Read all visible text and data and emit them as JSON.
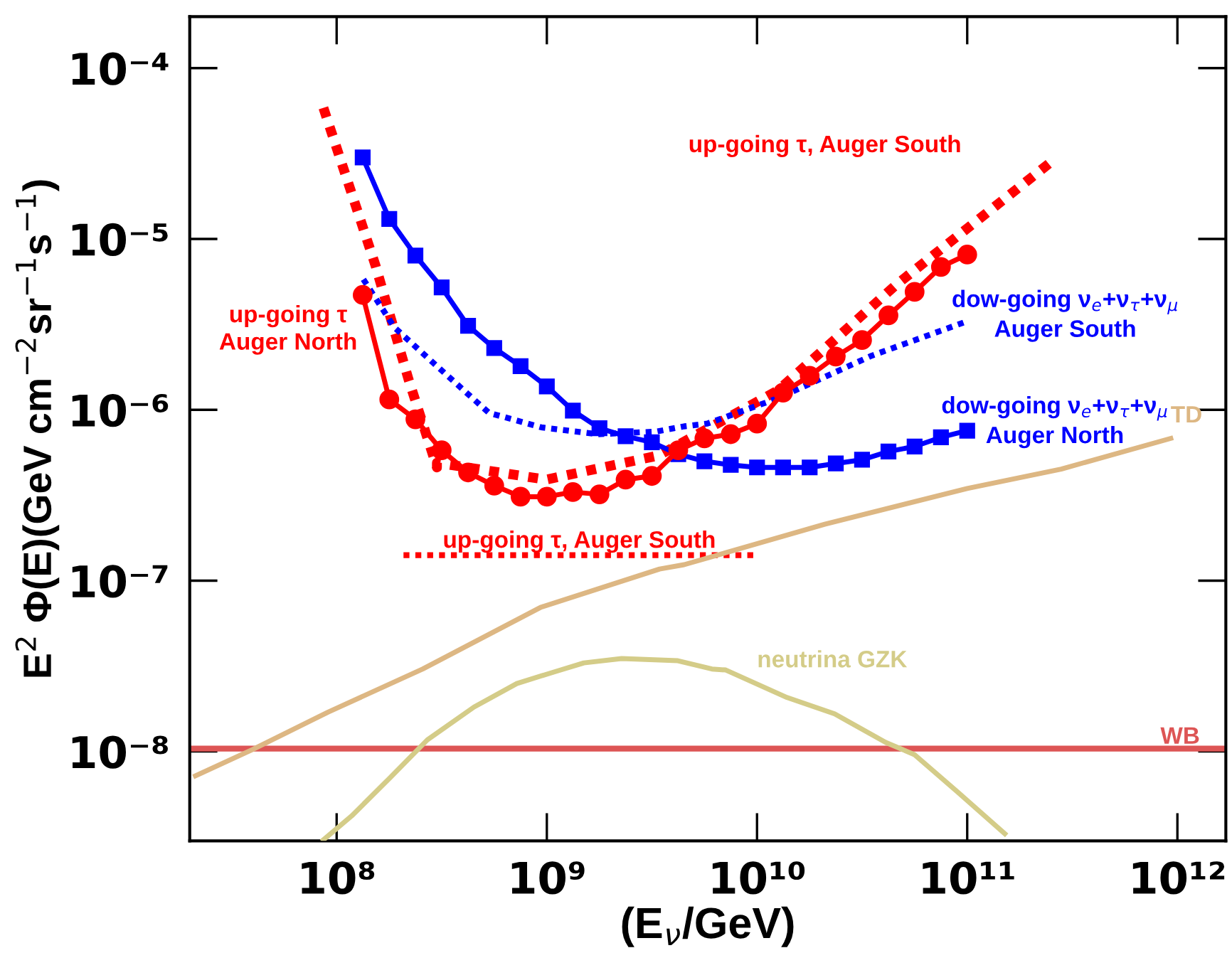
{
  "chart_data": {
    "type": "line",
    "xlabel": "(E$_{ν}$/GeV)",
    "ylabel": "E$^{2}$ Φ(E)(GeV cm$^{−2}$sr$^{−1}$s$^{−1}$)",
    "log": "xy",
    "grid": false,
    "xlim": [
      20000000.0,
      1700000000000.0
    ],
    "ylim": [
      3e-09,
      0.0002
    ],
    "xticks": [
      {
        "value": 100000000.0,
        "label": "10⁸"
      },
      {
        "value": 1000000000.0,
        "label": "10⁹"
      },
      {
        "value": 10000000000.0,
        "label": "10¹⁰"
      },
      {
        "value": 100000000000.0,
        "label": "10¹¹"
      },
      {
        "value": 1000000000000.0,
        "label": "10¹²"
      }
    ],
    "yticks": [
      {
        "value": 1e-08,
        "label": "10⁻⁸"
      },
      {
        "value": 1e-07,
        "label": "10⁻⁷"
      },
      {
        "value": 1e-06,
        "label": "10⁻⁶"
      },
      {
        "value": 1e-05,
        "label": "10⁻⁵"
      },
      {
        "value": 0.0001,
        "label": "10⁻⁴"
      }
    ],
    "series": [
      {
        "name": "up-going τ, Auger South",
        "color": "#ff0000",
        "line_style": "dotted",
        "marker": "none",
        "x": [
          86500000.0,
          153000000.0,
          220000000.0,
          300000000.0,
          300000000.0,
          990000000.0,
          3400000000.0,
          12600000000.0,
          46000000000.0,
          254000000000.0
        ],
        "values": [
          5.85e-05,
          7e-06,
          1.5e-06,
          4.6e-07,
          4.9e-07,
          3.9e-07,
          5.4e-07,
          1.3e-06,
          5.4e-06,
          2.86e-05
        ]
      },
      {
        "name": "up-going τ\nAuger North",
        "color": "#ff0000",
        "line_style": "solid",
        "marker": "circle",
        "x": [
          133000000.0,
          178000000.0,
          237000000.0,
          316000000.0,
          422000000.0,
          562000000.0,
          750000000.0,
          1000000000.0,
          1330000000.0,
          1780000000.0,
          2370000000.0,
          3160000000.0,
          4220000000.0,
          5620000000.0,
          7500000000.0,
          10000000000.0,
          13300000000.0,
          17800000000.0,
          23700000000.0,
          31600000000.0,
          42200000000.0,
          56200000000.0,
          75000000000.0,
          100000000000.0
        ],
        "values": [
          4.7e-06,
          1.15e-06,
          8.8e-07,
          5.8e-07,
          4.3e-07,
          3.6e-07,
          3.1e-07,
          3.1e-07,
          3.3e-07,
          3.2e-07,
          3.9e-07,
          4.1e-07,
          5.8e-07,
          6.8e-07,
          7.2e-07,
          8.3e-07,
          1.26e-06,
          1.58e-06,
          2.05e-06,
          2.56e-06,
          3.57e-06,
          4.9e-06,
          6.86e-06,
          8.1e-06
        ]
      },
      {
        "name": "dow-going ν$_{e}$+ν$_{τ}$+ν$_{μ}$\nAuger North",
        "color": "#0000ff",
        "line_style": "solid",
        "marker": "square",
        "x": [
          133000000.0,
          178000000.0,
          237000000.0,
          316000000.0,
          422000000.0,
          562000000.0,
          750000000.0,
          1000000000.0,
          1330000000.0,
          1780000000.0,
          2370000000.0,
          3160000000.0,
          4220000000.0,
          5620000000.0,
          7500000000.0,
          10000000000.0,
          13300000000.0,
          17800000000.0,
          23700000000.0,
          31600000000.0,
          42200000000.0,
          56200000000.0,
          75000000000.0,
          100000000000.0
        ],
        "values": [
          3e-05,
          1.31e-05,
          8e-06,
          5.2e-06,
          3.1e-06,
          2.3e-06,
          1.8e-06,
          1.37e-06,
          9.9e-07,
          7.8e-07,
          7e-07,
          6.45e-07,
          5.5e-07,
          5e-07,
          4.76e-07,
          4.6e-07,
          4.6e-07,
          4.6e-07,
          4.85e-07,
          5.1e-07,
          5.7e-07,
          6.1e-07,
          6.9e-07,
          7.55e-07
        ]
      },
      {
        "name": "dow-going ν$_{e}$+ν$_{τ}$+ν$_{μ}$\nAuger South",
        "color": "#0000ff",
        "line_style": "dotted",
        "marker": "none",
        "x": [
          134000000.0,
          188000000.0,
          300000000.0,
          530000000.0,
          940000000.0,
          1750000000.0,
          3300000000.0,
          4500000000.0,
          5800000000.0,
          12600000000.0,
          35000000000.0,
          100000000000.0
        ],
        "values": [
          5.8e-06,
          3.04e-06,
          1.8e-06,
          9.6e-07,
          7.9e-07,
          7.2e-07,
          7.45e-07,
          8e-07,
          8.3e-07,
          1.17e-06,
          2.07e-06,
          3.3e-06
        ]
      },
      {
        "name": "up-going τ, Auger South",
        "color": "#ff0000",
        "line_style": "dotted",
        "marker": "none",
        "x": [
          208000000.0,
          9700000000.0
        ],
        "values": [
          1.41e-07,
          1.41e-07
        ]
      },
      {
        "name": "TD",
        "color": "#ddb783",
        "line_style": "solid",
        "marker": "none",
        "x": [
          21300000.0,
          40000000.0,
          91000000.0,
          257000000.0,
          940000000.0,
          3440000000.0,
          4500000000.0,
          21000000000.0,
          100000000000.0,
          280000000000.0,
          930000000000.0
        ],
        "values": [
          7.2e-09,
          1.03e-08,
          1.7e-08,
          3.04e-08,
          7e-08,
          1.17e-07,
          1.24e-07,
          2.14e-07,
          3.46e-07,
          4.5e-07,
          6.8e-07
        ]
      },
      {
        "name": "neutrina GZK",
        "color": "#d4cc88",
        "line_style": "solid",
        "marker": "none",
        "x": [
          86500000.0,
          118000000.0,
          179000000.0,
          270000000.0,
          450000000.0,
          720000000.0,
          1100000000.0,
          1500000000.0,
          2270000000.0,
          2940000000.0,
          4200000000.0,
          6100000000.0,
          7100000000.0,
          13900000000.0,
          23400000000.0,
          41000000000.0,
          56000000000.0,
          90000000000.0,
          151000000000.0
        ],
        "values": [
          3.04e-09,
          4.2e-09,
          7e-09,
          1.17e-08,
          1.82e-08,
          2.5e-08,
          2.94e-08,
          3.3e-08,
          3.5e-08,
          3.46e-08,
          3.4e-08,
          3.04e-08,
          3e-08,
          2.07e-08,
          1.66e-08,
          1.13e-08,
          9.6e-09,
          5.8e-09,
          3.3e-09
        ]
      }
    ],
    "ref_lines": [
      {
        "axis": "y",
        "value": 1.04e-08,
        "label": "WB",
        "color": "#dd5555",
        "line_style": "solid"
      }
    ]
  }
}
